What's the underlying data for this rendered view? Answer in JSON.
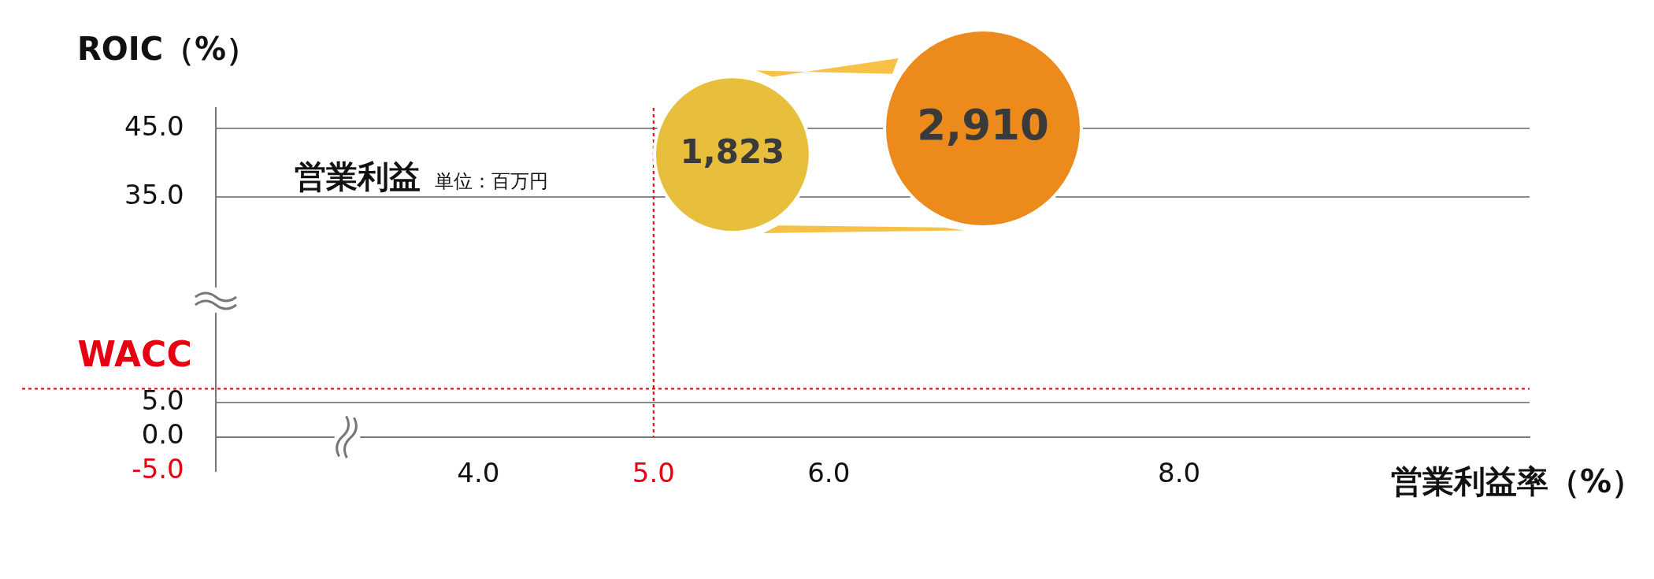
{
  "chart_data": {
    "type": "bubble",
    "xlabel": "営業利益率（%）",
    "ylabel": "ROIC（%）",
    "annotations": [
      "営業利益",
      "単位：百万円"
    ],
    "x": [
      5.45,
      6.88
    ],
    "series": [
      {
        "values": [
          41.2,
          45.0
        ],
        "sizes": [
          1823,
          2910
        ],
        "colors": [
          "#e8bf3c",
          "#ec8a1c"
        ],
        "value_labels": [
          "1,823",
          "2,910"
        ]
      }
    ],
    "xlim": [
      2.5,
      10
    ],
    "xticks": [
      {
        "value": 4,
        "label": "4.0"
      },
      {
        "value": 5,
        "label": "5.0"
      },
      {
        "value": 6,
        "label": "6.0"
      },
      {
        "value": 8,
        "label": "8.0"
      }
    ],
    "ylim": [
      -5,
      48
    ],
    "yticks": [
      {
        "value": -5,
        "label": "-5.0"
      },
      {
        "value": 0,
        "label": "0.0"
      },
      {
        "value": 5,
        "label": "5.0"
      },
      {
        "value": 35,
        "label": "35.0"
      },
      {
        "value": 45,
        "label": "45.0"
      }
    ],
    "grid": "y",
    "ref_lines": [
      {
        "axis": "x",
        "value": 5,
        "color": "#e60012",
        "line_style": "dotted"
      },
      {
        "axis": "y",
        "value": 7,
        "label": "WACC",
        "color": "#e60012",
        "line_style": "dotted"
      }
    ],
    "legend": false
  }
}
